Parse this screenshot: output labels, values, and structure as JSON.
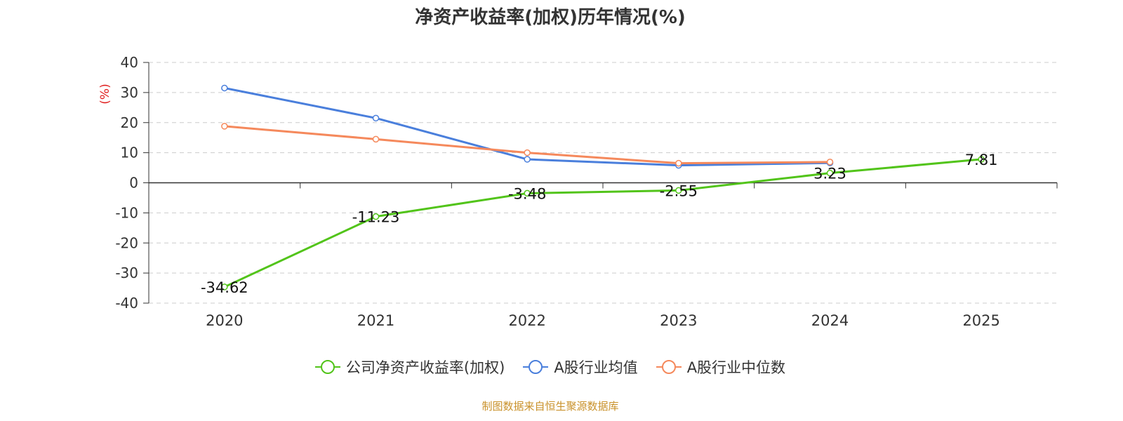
{
  "chart_data": {
    "type": "line",
    "title": "净资产收益率(加权)历年情况(%)",
    "ylabel": "(%)",
    "xlabel": "",
    "categories": [
      "2020",
      "2021",
      "2022",
      "2023",
      "2024",
      "2025"
    ],
    "ylim": [
      -40,
      40
    ],
    "yticks": [
      40,
      30,
      20,
      10,
      0,
      -10,
      -20,
      -30,
      -40
    ],
    "grid": true,
    "legend_position": "bottom",
    "series": [
      {
        "name": "公司净资产收益率(加权)",
        "color": "#52c41a",
        "values": [
          -34.62,
          -11.23,
          -3.48,
          -2.55,
          3.23,
          7.81
        ],
        "labels": [
          "-34.62",
          "-11.23",
          "-3.48",
          "-2.55",
          "3.23",
          "7.81"
        ]
      },
      {
        "name": "A股行业均值",
        "color": "#4a7fdc",
        "values": [
          31.5,
          21.5,
          7.8,
          5.8,
          6.6,
          null
        ]
      },
      {
        "name": "A股行业中位数",
        "color": "#f5895c",
        "values": [
          18.8,
          14.5,
          10.0,
          6.5,
          6.9,
          null
        ]
      }
    ]
  },
  "source": "制图数据来自恒生聚源数据库"
}
